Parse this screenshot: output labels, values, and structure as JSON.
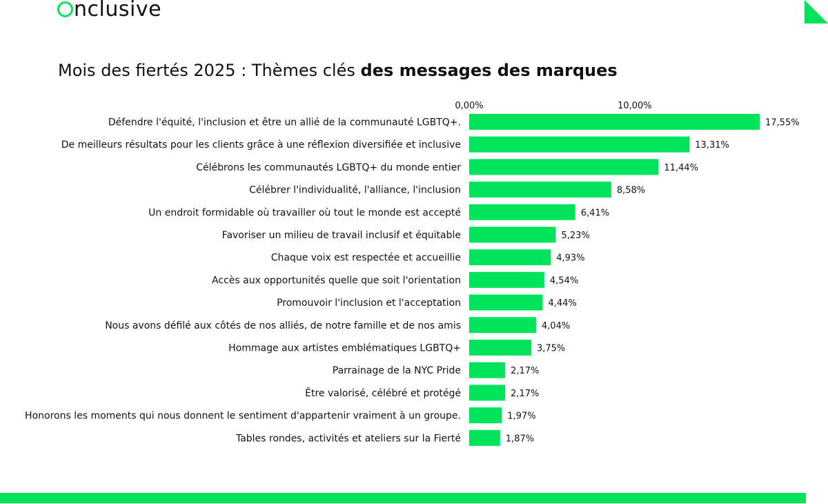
{
  "brand": {
    "name": "nclusive",
    "accent_color": "#00E35B",
    "text_color": "#111111"
  },
  "header": {
    "title_regular": "Mois des fiertés 2025 : Thèmes clés ",
    "title_bold": "des messages des marques"
  },
  "chart_data": {
    "type": "bar",
    "orientation": "horizontal",
    "title": "Mois des fiertés 2025 : Thèmes clés des messages des marques",
    "x_tick_labels": [
      "0,00%",
      "10,00%"
    ],
    "x_ticks": [
      0,
      10
    ],
    "xlim": [
      0,
      17.55
    ],
    "grid": false,
    "bar_color": "#00E35B",
    "categories": [
      "Défendre l'équité, l'inclusion et être un allié de la communauté LGBTQ+.",
      "De meilleurs résultats pour les clients grâce à une réflexion diversifiée et inclusive",
      "Célébrons les communautés LGBTQ+ du monde entier",
      "Célébrer l'individualité, l'alliance, l'inclusion",
      "Un endroit formidable où travailler où tout le monde est accepté",
      "Favoriser un milieu de travail inclusif et équitable",
      "Chaque voix est respectée et accueillie",
      "Accès aux opportunités quelle que soit l'orientation",
      "Promouvoir l'inclusion et l'acceptation",
      "Nous avons défilé aux côtés de nos alliés, de notre famille et de nos amis",
      "Hommage aux artistes emblématiques LGBTQ+",
      "Parrainage de la NYC Pride",
      "Être valorisé, célébré et protégé",
      "Honorons les moments qui nous donnent le sentiment d'appartenir vraiment à un groupe.",
      "Tables rondes, activités et ateliers sur la Fierté"
    ],
    "values": [
      17.55,
      13.31,
      11.44,
      8.58,
      6.41,
      5.23,
      4.93,
      4.54,
      4.44,
      4.04,
      3.75,
      2.17,
      2.17,
      1.97,
      1.87
    ],
    "value_labels": [
      "17,55%",
      "13,31%",
      "11,44%",
      "8,58%",
      "6,41%",
      "5,23%",
      "4,93%",
      "4,54%",
      "4,44%",
      "4,04%",
      "3,75%",
      "2,17%",
      "2,17%",
      "1,97%",
      "1,87%"
    ]
  }
}
